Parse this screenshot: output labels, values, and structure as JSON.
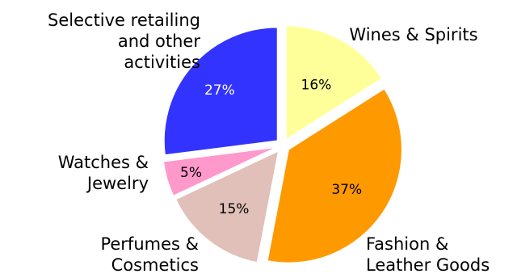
{
  "chart_data": {
    "type": "pie",
    "title": "",
    "slices": [
      {
        "label_lines": [
          "Wines & Spirits"
        ],
        "value": 16,
        "value_label": "16%",
        "color": "#ffff99",
        "value_label_color": "#000000"
      },
      {
        "label_lines": [
          "Fashion &",
          "Leather Goods"
        ],
        "value": 37,
        "value_label": "37%",
        "color": "#ff9900",
        "value_label_color": "#000000"
      },
      {
        "label_lines": [
          "Perfumes &",
          "Cosmetics"
        ],
        "value": 15,
        "value_label": "15%",
        "color": "#e0c0b8",
        "value_label_color": "#000000"
      },
      {
        "label_lines": [
          "Watches &",
          "Jewelry"
        ],
        "value": 5,
        "value_label": "5%",
        "color": "#ff99cc",
        "value_label_color": "#000000"
      },
      {
        "label_lines": [
          "Selective retailing",
          "and other",
          "activities"
        ],
        "value": 27,
        "value_label": "27%",
        "color": "#3333ff",
        "value_label_color": "#ffffff"
      }
    ]
  }
}
